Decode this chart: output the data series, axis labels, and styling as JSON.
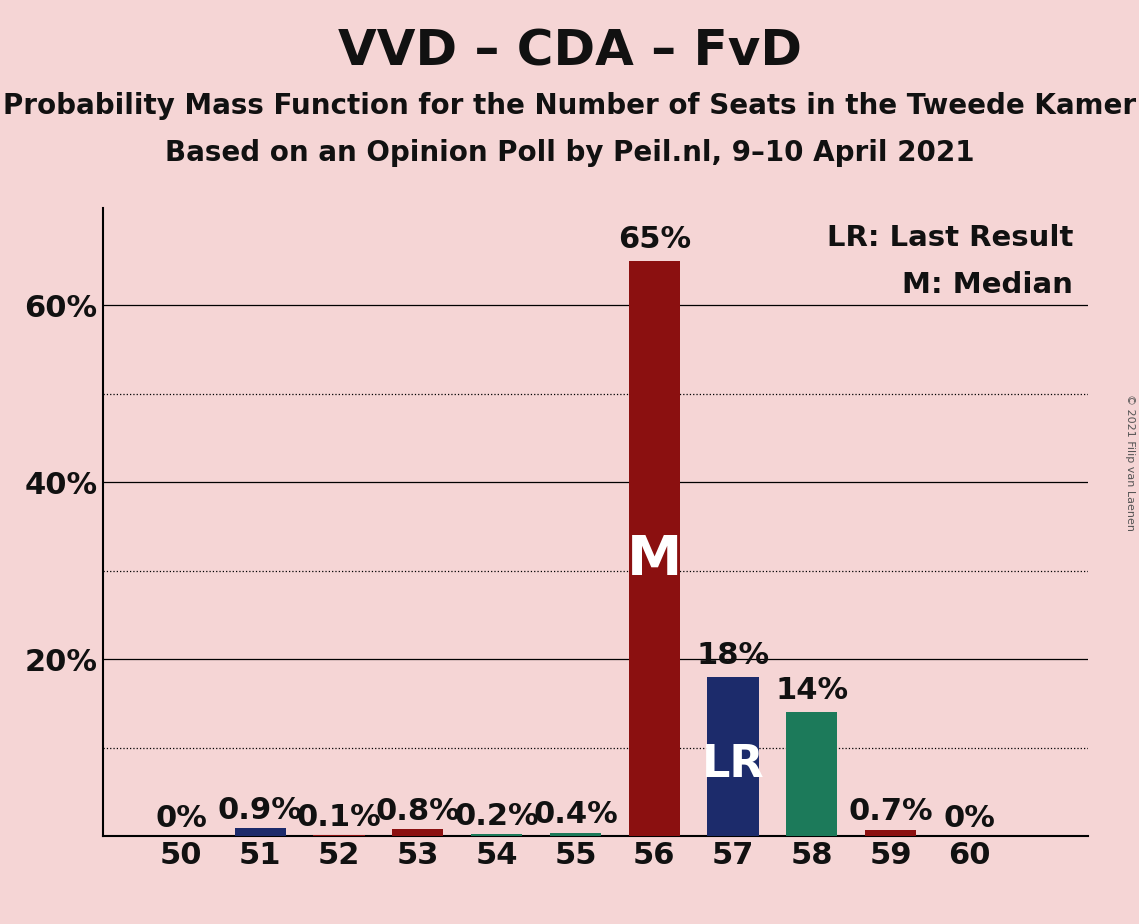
{
  "title": "VVD – CDA – FvD",
  "subtitle1": "Probability Mass Function for the Number of Seats in the Tweede Kamer",
  "subtitle2": "Based on an Opinion Poll by Peil.nl, 9–10 April 2021",
  "copyright": "© 2021 Filip van Laenen",
  "seats": [
    50,
    51,
    52,
    53,
    54,
    55,
    56,
    57,
    58,
    59,
    60
  ],
  "values": [
    0.0,
    0.9,
    0.1,
    0.8,
    0.2,
    0.4,
    65.0,
    18.0,
    14.0,
    0.7,
    0.0
  ],
  "median_seat": 56,
  "lr_seat": 57,
  "teal_seat": 58,
  "labels": [
    "0%",
    "0.9%",
    "0.1%",
    "0.8%",
    "0.2%",
    "0.4%",
    "65%",
    "18%",
    "14%",
    "0.7%",
    "0%"
  ],
  "legend_lr": "LR: Last Result",
  "legend_m": "M: Median",
  "background_color": "#F5D5D5",
  "bar_color_dark_red": "#8B1010",
  "bar_color_navy": "#1C2B6B",
  "bar_color_teal": "#1C7A5A",
  "ylim": [
    0,
    71
  ],
  "ytick_positions": [
    20,
    40,
    60
  ],
  "ytick_labels": [
    "20%",
    "40%",
    "60%"
  ],
  "grid_solid": [
    20,
    40,
    60
  ],
  "grid_dotted": [
    10,
    30,
    50
  ],
  "title_fontsize": 36,
  "subtitle_fontsize": 20,
  "tick_fontsize": 22,
  "bar_label_fontsize": 22,
  "legend_fontsize": 21
}
